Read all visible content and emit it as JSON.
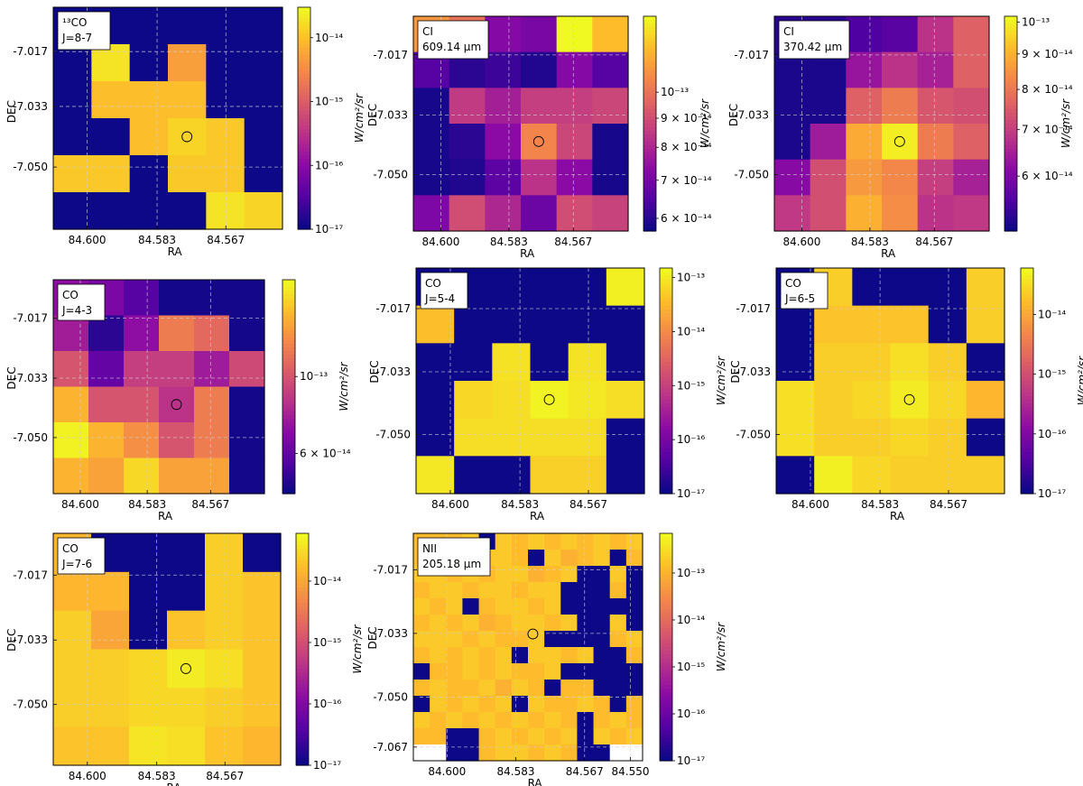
{
  "chart_data": [
    {
      "type": "heatmap",
      "line_label": "¹³CO",
      "line_sub": "J=8-7",
      "xlabel": "RA",
      "ylabel": "DEC",
      "xticks": [
        "84.600",
        "84.583",
        "84.567"
      ],
      "yticks": [
        "-7.017",
        "-7.033",
        "-7.050"
      ],
      "colorbar_label": "W/cm²/sr",
      "colorbar_ticks": [
        "10⁻¹⁴",
        "10⁻¹⁵",
        "10⁻¹⁶",
        "10⁻¹⁷"
      ],
      "colorbar_scale": "log",
      "colorbar_range": [
        1e-17,
        3e-14
      ],
      "grid": [
        [
          1e-17,
          1e-17,
          1e-17,
          1e-17,
          1e-17,
          1e-17
        ],
        [
          1e-17,
          2e-14,
          1e-17,
          5e-15,
          1e-17,
          1e-17
        ],
        [
          1e-17,
          1e-14,
          1e-14,
          1e-14,
          1e-17,
          1e-17
        ],
        [
          1e-17,
          1e-17,
          1e-14,
          1.5e-14,
          1.2e-14,
          1e-17
        ],
        [
          1.2e-14,
          1.2e-14,
          1e-17,
          1.2e-14,
          1.2e-14,
          1e-17
        ],
        [
          1e-17,
          1e-17,
          1e-17,
          1e-17,
          2e-14,
          1.5e-14
        ]
      ],
      "marker": {
        "col": 3.5,
        "row": 3.5,
        "symbol": "open circle"
      }
    },
    {
      "type": "heatmap",
      "line_label": "CI",
      "line_sub": "609.14 μm",
      "xlabel": "RA",
      "ylabel": "DEC",
      "xticks": [
        "84.600",
        "84.583",
        "84.567"
      ],
      "yticks": [
        "-7.017",
        "-7.033",
        "-7.050"
      ],
      "colorbar_label": "W/cm²/sr",
      "colorbar_ticks": [
        "10⁻¹³",
        "9 × 10⁻¹⁴",
        "8 × 10⁻¹⁴",
        "7 × 10⁻¹⁴",
        "6 × 10⁻¹⁴"
      ],
      "colorbar_scale": "log",
      "colorbar_range": [
        5.7e-14,
        1.36e-13
      ],
      "grid": [
        [
          1.1e-13,
          1e-13,
          7.2e-14,
          7e-14,
          1.36e-13,
          1.2e-13
        ],
        [
          6.5e-14,
          6e-14,
          6.2e-14,
          5.9e-14,
          7.2e-14,
          6.5e-14
        ],
        [
          5.8e-14,
          8.5e-14,
          7.8e-14,
          8.6e-14,
          8.6e-14,
          8.8e-14
        ],
        [
          5.8e-14,
          6e-14,
          7.3e-14,
          1.05e-13,
          8.8e-14,
          5.8e-14
        ],
        [
          5.8e-14,
          5.9e-14,
          6.6e-14,
          8.3e-14,
          7.3e-14,
          5.8e-14
        ],
        [
          7.1e-14,
          9e-14,
          8e-14,
          6.8e-14,
          9e-14,
          8.7e-14
        ]
      ],
      "marker": {
        "col": 3.5,
        "row": 3.5,
        "symbol": "open circle"
      }
    },
    {
      "type": "heatmap",
      "line_label": "CI",
      "line_sub": "370.42 μm",
      "xlabel": "RA",
      "ylabel": "DEC",
      "xticks": [
        "84.600",
        "84.583",
        "84.567"
      ],
      "yticks": [
        "-7.017",
        "-7.033",
        "-7.050"
      ],
      "colorbar_label": "W/cm²/sr",
      "colorbar_ticks": [
        "10⁻¹³",
        "9 × 10⁻¹⁴",
        "8 × 10⁻¹⁴",
        "7 × 10⁻¹⁴",
        "6 × 10⁻¹⁴"
      ],
      "colorbar_scale": "log",
      "colorbar_range": [
        5e-14,
        1.02e-13
      ],
      "grid": [
        [
          5.2e-14,
          5.2e-14,
          5.5e-14,
          5.6e-14,
          6.8e-14,
          7.6e-14
        ],
        [
          5.1e-14,
          5.1e-14,
          6.3e-14,
          6.8e-14,
          6.5e-14,
          7.6e-14
        ],
        [
          5.1e-14,
          5.1e-14,
          7.6e-14,
          8.1e-14,
          7.4e-14,
          7.3e-14
        ],
        [
          5.1e-14,
          6.4e-14,
          8.9e-14,
          1e-13,
          8.1e-14,
          7.6e-14
        ],
        [
          6.1e-14,
          7.3e-14,
          8.6e-14,
          8.3e-14,
          7e-14,
          6.5e-14
        ],
        [
          6.9e-14,
          7.3e-14,
          9e-14,
          8.4e-14,
          6.8e-14,
          6.9e-14
        ]
      ],
      "marker": {
        "col": 3.5,
        "row": 3.5,
        "symbol": "open circle"
      }
    },
    {
      "type": "heatmap",
      "line_label": "CO",
      "line_sub": "J=4-3",
      "xlabel": "RA",
      "ylabel": "DEC",
      "xticks": [
        "84.600",
        "84.583",
        "84.567"
      ],
      "yticks": [
        "-7.017",
        "-7.033",
        "-7.050"
      ],
      "colorbar_label": "W/cm²/sr",
      "colorbar_ticks": [
        "10⁻¹³",
        "6 × 10⁻¹⁴"
      ],
      "colorbar_scale": "log",
      "colorbar_range": [
        4.6e-14,
        1.9e-13
      ],
      "grid": [
        [
          7e-14,
          6.5e-14,
          5.7e-14,
          4.7e-14,
          4.7e-14,
          4.7e-14
        ],
        [
          7.6e-14,
          5e-14,
          7e-14,
          1.2e-13,
          1.1e-13,
          4.7e-14
        ],
        [
          1e-13,
          6e-14,
          9e-14,
          9e-14,
          7.5e-14,
          9.5e-14
        ],
        [
          1.5e-13,
          1e-13,
          1e-13,
          8.5e-14,
          1.2e-13,
          4.7e-14
        ],
        [
          1.85e-13,
          1.5e-13,
          1.3e-13,
          1e-13,
          1.2e-13,
          4.7e-14
        ],
        [
          1.5e-13,
          1.4e-13,
          1.7e-13,
          1.4e-13,
          1.4e-13,
          4.7e-14
        ]
      ],
      "marker": {
        "col": 3.5,
        "row": 3.5,
        "symbol": "open circle"
      }
    },
    {
      "type": "heatmap",
      "line_label": "CO",
      "line_sub": "J=5-4",
      "xlabel": "RA",
      "ylabel": "DEC",
      "xticks": [
        "84.600",
        "84.583",
        "84.567"
      ],
      "yticks": [
        "-7.017",
        "-7.033",
        "-7.050"
      ],
      "colorbar_label": "W/cm²/sr",
      "colorbar_ticks": [
        "10⁻¹³",
        "10⁻¹⁴",
        "10⁻¹⁵",
        "10⁻¹⁶",
        "10⁻¹⁷"
      ],
      "colorbar_scale": "log",
      "colorbar_range": [
        1e-17,
        1.5e-13
      ],
      "grid": [
        [
          1e-17,
          1e-17,
          1e-17,
          1e-17,
          1e-17,
          1.2e-13
        ],
        [
          4e-14,
          1e-17,
          1e-17,
          1e-17,
          1e-17,
          1e-17
        ],
        [
          1e-17,
          1e-17,
          9e-14,
          1e-17,
          9e-14,
          1e-17
        ],
        [
          1e-17,
          7e-14,
          8e-14,
          1.3e-13,
          1e-13,
          8e-14
        ],
        [
          1e-17,
          8e-14,
          8e-14,
          8e-14,
          8e-14,
          1e-17
        ],
        [
          1e-13,
          1e-17,
          1e-17,
          6e-14,
          6e-14,
          1e-17
        ]
      ],
      "marker": {
        "col": 3.5,
        "row": 3.5,
        "symbol": "open circle"
      }
    },
    {
      "type": "heatmap",
      "line_label": "CO",
      "line_sub": "J=6-5",
      "xlabel": "RA",
      "ylabel": "DEC",
      "xticks": [
        "84.600",
        "84.583",
        "84.567"
      ],
      "yticks": [
        "-7.017",
        "-7.033",
        "-7.050"
      ],
      "colorbar_label": "W/cm²/sr",
      "colorbar_ticks": [
        "10⁻¹⁴",
        "10⁻¹⁵",
        "10⁻¹⁶",
        "10⁻¹⁷"
      ],
      "colorbar_scale": "log",
      "colorbar_range": [
        1e-17,
        6e-14
      ],
      "grid": [
        [
          1e-17,
          2.5e-14,
          1e-17,
          1e-17,
          1e-17,
          2.5e-14
        ],
        [
          1e-17,
          2e-14,
          2e-14,
          2e-14,
          1e-17,
          2.5e-14
        ],
        [
          1e-17,
          2.5e-14,
          2.5e-14,
          3.5e-14,
          2.5e-14,
          1e-17
        ],
        [
          3.5e-14,
          2.5e-14,
          3e-14,
          4.5e-14,
          3e-14,
          1.5e-14
        ],
        [
          3.5e-14,
          2.5e-14,
          2.5e-14,
          3e-14,
          2.5e-14,
          1e-17
        ],
        [
          1e-17,
          5e-14,
          3e-14,
          2.5e-14,
          2.5e-14,
          2.5e-14
        ]
      ],
      "marker": {
        "col": 3.5,
        "row": 3.5,
        "symbol": "open circle"
      }
    },
    {
      "type": "heatmap",
      "line_label": "CO",
      "line_sub": "J=7-6",
      "xlabel": "RA",
      "ylabel": "DEC",
      "xticks": [
        "84.600",
        "84.583",
        "84.567"
      ],
      "yticks": [
        "-7.017",
        "-7.033",
        "-7.050"
      ],
      "colorbar_label": "W/cm²/sr",
      "colorbar_ticks": [
        "10⁻¹⁴",
        "10⁻¹⁵",
        "10⁻¹⁶",
        "10⁻¹⁷"
      ],
      "colorbar_scale": "log",
      "colorbar_range": [
        1e-17,
        6e-14
      ],
      "grid": [
        [
          1.5e-14,
          1e-17,
          1e-17,
          1e-17,
          2.5e-14,
          1e-17
        ],
        [
          1.5e-14,
          1.5e-14,
          1e-17,
          1e-17,
          2.5e-14,
          2e-14
        ],
        [
          2.5e-14,
          1e-14,
          1e-17,
          2e-14,
          2.5e-14,
          2e-14
        ],
        [
          2.5e-14,
          2.5e-14,
          3e-14,
          4.5e-14,
          3.5e-14,
          2e-14
        ],
        [
          2.5e-14,
          2.5e-14,
          3e-14,
          3e-14,
          2.5e-14,
          2e-14
        ],
        [
          2e-14,
          2e-14,
          4e-14,
          3.5e-14,
          2e-14,
          1.5e-14
        ]
      ],
      "marker": {
        "col": 3.5,
        "row": 3.5,
        "symbol": "open circle"
      }
    },
    {
      "type": "heatmap",
      "line_label": "NII",
      "line_sub": "205.18 μm",
      "xlabel": "RA",
      "ylabel": "DEC",
      "xticks": [
        "84.600",
        "84.583",
        "84.567",
        "84.550"
      ],
      "yticks": [
        "-7.017",
        "-7.033",
        "-7.050",
        "-7.067"
      ],
      "colorbar_label": "W/cm²/sr",
      "colorbar_ticks": [
        "10⁻¹³",
        "10⁻¹⁴",
        "10⁻¹⁵",
        "10⁻¹⁶",
        "10⁻¹⁷"
      ],
      "colorbar_scale": "log",
      "colorbar_range": [
        1e-17,
        7e-13
      ],
      "grid": [
        [
          1.4e-13,
          1.4e-13,
          1.4e-13,
          2e-13,
          1e-17,
          2e-13,
          1.4e-13,
          2e-13,
          1.4e-13,
          2e-13,
          1.4e-13,
          2e-13,
          1.4e-13,
          2e-13
        ],
        [
          1.4e-13,
          2e-13,
          2e-13,
          1.4e-13,
          2e-13,
          2e-13,
          1.4e-13,
          1e-17,
          2e-13,
          1e-13,
          1.4e-13,
          2e-13,
          1e-17,
          1.4e-13
        ],
        [
          2e-13,
          2e-13,
          1.4e-13,
          2e-13,
          1.4e-13,
          2e-13,
          2e-13,
          1e-13,
          1.4e-13,
          2e-13,
          1e-17,
          1e-17,
          2e-13,
          1e-17
        ],
        [
          1.4e-13,
          2e-13,
          2e-13,
          1.4e-13,
          2e-13,
          2e-13,
          1.4e-13,
          2e-13,
          2e-13,
          1e-17,
          1e-17,
          1e-17,
          1.4e-13,
          1e-17
        ],
        [
          2e-13,
          1.4e-13,
          2e-13,
          1e-17,
          1.4e-13,
          2e-13,
          2e-13,
          1.4e-13,
          2e-13,
          1e-17,
          1e-17,
          1e-17,
          1e-17,
          1e-17
        ],
        [
          1.4e-13,
          2e-13,
          1.4e-13,
          2e-13,
          1e-13,
          1.4e-13,
          2e-13,
          2e-13,
          1.4e-13,
          2e-13,
          1e-17,
          1e-17,
          2e-13,
          1e-17
        ],
        [
          2e-13,
          2e-13,
          2e-13,
          1.4e-13,
          2e-13,
          1.4e-13,
          1.4e-13,
          2e-13,
          1e-17,
          1e-17,
          1e-17,
          1e-17,
          1.4e-13,
          2e-13
        ],
        [
          1.4e-13,
          2e-13,
          1.4e-13,
          2e-13,
          1.4e-13,
          2e-13,
          1e-17,
          2e-13,
          2e-13,
          1.4e-13,
          2e-13,
          1e-17,
          1e-17,
          1.4e-13
        ],
        [
          1e-17,
          1.4e-13,
          1.4e-13,
          2e-13,
          1.4e-13,
          2e-13,
          1.4e-13,
          1.4e-13,
          2e-13,
          1e-17,
          1e-17,
          1e-17,
          1e-17,
          1e-17
        ],
        [
          1.4e-13,
          2e-13,
          1.4e-13,
          1.4e-13,
          2e-13,
          1e-13,
          2e-13,
          1.4e-13,
          1e-17,
          1.4e-13,
          1.4e-13,
          1e-17,
          1e-17,
          1e-17
        ],
        [
          1e-17,
          2e-13,
          1.4e-13,
          2e-13,
          1.4e-13,
          2e-13,
          1e-17,
          2e-13,
          1.4e-13,
          1.4e-13,
          2e-13,
          1.4e-13,
          1e-17,
          1.4e-13
        ],
        [
          2e-13,
          1.4e-13,
          2e-13,
          1.4e-13,
          2e-13,
          1.4e-13,
          2e-13,
          1.4e-13,
          2e-13,
          1.4e-13,
          1e-17,
          1.4e-13,
          2e-13,
          1.4e-13
        ],
        [
          1.4e-13,
          1.4e-13,
          1e-17,
          1e-17,
          1.4e-13,
          2e-13,
          1.4e-13,
          2e-13,
          1.4e-13,
          2e-13,
          1e-17,
          2e-13,
          1.4e-13,
          2e-13
        ],
        [
          null,
          null,
          1e-17,
          1e-17,
          1.4e-13,
          2e-13,
          2e-13,
          1.4e-13,
          2e-13,
          1.4e-13,
          1e-17,
          1e-17,
          null,
          null
        ]
      ],
      "marker": {
        "col": 7.3,
        "row": 6.2,
        "symbol": "open circle"
      }
    }
  ]
}
